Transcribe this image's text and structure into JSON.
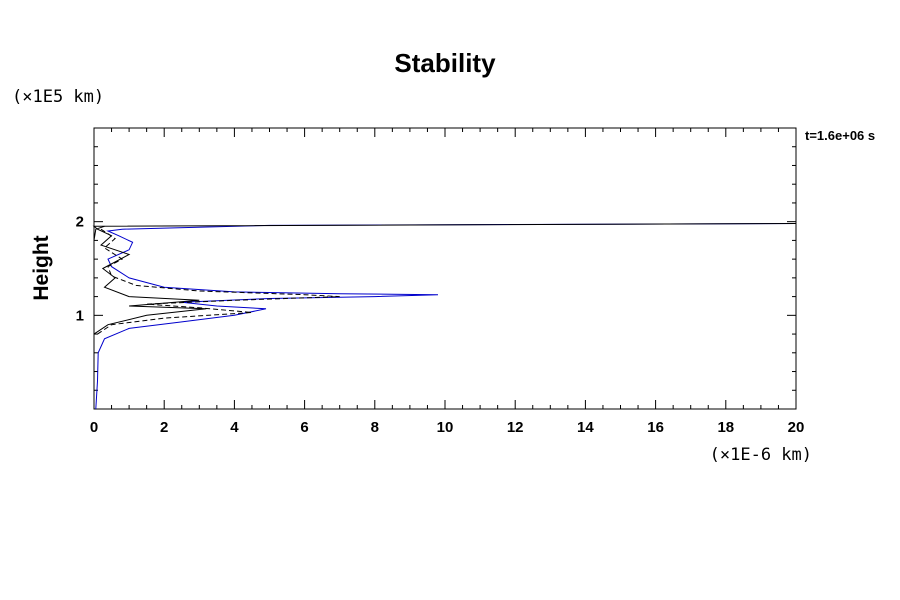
{
  "chart_data": {
    "type": "line",
    "title": "Stability",
    "xlabel": "",
    "ylabel": "Height",
    "x_unit": "(×1E-6 km)",
    "y_unit": "(×1E5 km)",
    "time_label": "t=1.6e+06 s",
    "xlim": [
      0,
      20
    ],
    "ylim": [
      0,
      3
    ],
    "x_ticks": [
      0,
      2,
      4,
      6,
      8,
      10,
      12,
      14,
      16,
      18,
      20
    ],
    "y_ticks": [
      1,
      2
    ],
    "grid": false,
    "series": [
      {
        "style": "solid",
        "color": "#0000cc",
        "points": [
          [
            0.05,
            0.0
          ],
          [
            0.1,
            0.3
          ],
          [
            0.12,
            0.6
          ],
          [
            0.3,
            0.75
          ],
          [
            1.0,
            0.86
          ],
          [
            2.5,
            0.93
          ],
          [
            4.0,
            1.0
          ],
          [
            4.9,
            1.07
          ],
          [
            3.5,
            1.1
          ],
          [
            2.5,
            1.14
          ],
          [
            5.0,
            1.18
          ],
          [
            8.0,
            1.2
          ],
          [
            9.8,
            1.22
          ],
          [
            7.0,
            1.23
          ],
          [
            4.0,
            1.25
          ],
          [
            2.0,
            1.3
          ],
          [
            1.0,
            1.4
          ],
          [
            0.5,
            1.52
          ],
          [
            0.4,
            1.6
          ],
          [
            1.0,
            1.7
          ],
          [
            1.1,
            1.78
          ],
          [
            0.7,
            1.85
          ],
          [
            0.4,
            1.9
          ],
          [
            0.8,
            1.92
          ],
          [
            5.0,
            1.96
          ],
          [
            12.0,
            1.97
          ],
          [
            20.0,
            1.98
          ]
        ]
      },
      {
        "style": "dashed",
        "color": "#000000",
        "points": [
          [
            0.1,
            0.8
          ],
          [
            0.5,
            0.9
          ],
          [
            2.0,
            0.97
          ],
          [
            4.5,
            1.03
          ],
          [
            3.0,
            1.08
          ],
          [
            1.5,
            1.12
          ],
          [
            4.0,
            1.16
          ],
          [
            7.0,
            1.2
          ],
          [
            6.0,
            1.22
          ],
          [
            3.0,
            1.26
          ],
          [
            1.2,
            1.32
          ],
          [
            0.5,
            1.42
          ],
          [
            0.4,
            1.52
          ],
          [
            0.8,
            1.6
          ],
          [
            0.3,
            1.72
          ],
          [
            0.6,
            1.82
          ],
          [
            0.2,
            1.92
          ]
        ]
      },
      {
        "style": "solid",
        "color": "#000000",
        "points": [
          [
            0.0,
            0.8
          ],
          [
            0.4,
            0.9
          ],
          [
            1.5,
            1.0
          ],
          [
            3.2,
            1.07
          ],
          [
            1.0,
            1.1
          ],
          [
            3.0,
            1.16
          ],
          [
            1.0,
            1.2
          ],
          [
            0.3,
            1.3
          ],
          [
            0.6,
            1.4
          ],
          [
            0.25,
            1.5
          ],
          [
            1.0,
            1.65
          ],
          [
            0.2,
            1.75
          ],
          [
            0.5,
            1.85
          ],
          [
            0.1,
            1.92
          ],
          [
            0.0,
            1.95
          ],
          [
            20.0,
            1.98
          ]
        ]
      },
      {
        "style": "solid",
        "color": "#000000",
        "points": [
          [
            0.0,
            1.8
          ],
          [
            0.05,
            1.92
          ],
          [
            0.3,
            1.95
          ]
        ]
      }
    ]
  }
}
